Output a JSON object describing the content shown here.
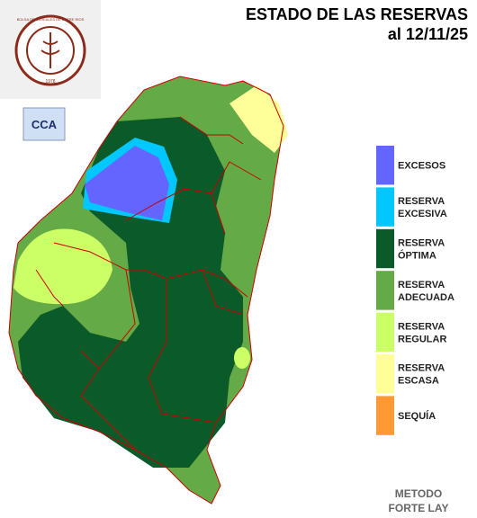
{
  "header": {
    "title": "ESTADO DE LAS RESERVAS",
    "date": "al 12/11/25"
  },
  "logo": {
    "text": "BOLSA DE CEREALES DE ENTRE RIOS",
    "year": "1978"
  },
  "badge": "CCA",
  "legend": [
    {
      "lines": [
        "EXCESOS"
      ],
      "color": "#6464ff"
    },
    {
      "lines": [
        "RESERVA",
        "EXCESIVA"
      ],
      "color": "#00c8ff"
    },
    {
      "lines": [
        "RESERVA",
        "ÓPTIMA"
      ],
      "color": "#0a5a2a"
    },
    {
      "lines": [
        "RESERVA",
        "ADECUADA"
      ],
      "color": "#64aa46"
    },
    {
      "lines": [
        "RESERVA",
        "REGULAR"
      ],
      "color": "#ccff66"
    },
    {
      "lines": [
        "RESERVA",
        "ESCASA"
      ],
      "color": "#ffff99"
    },
    {
      "lines": [
        "SEQUÍA"
      ],
      "color": "#ff9933"
    }
  ],
  "method": [
    "METODO",
    "FORTE LAY"
  ]
}
